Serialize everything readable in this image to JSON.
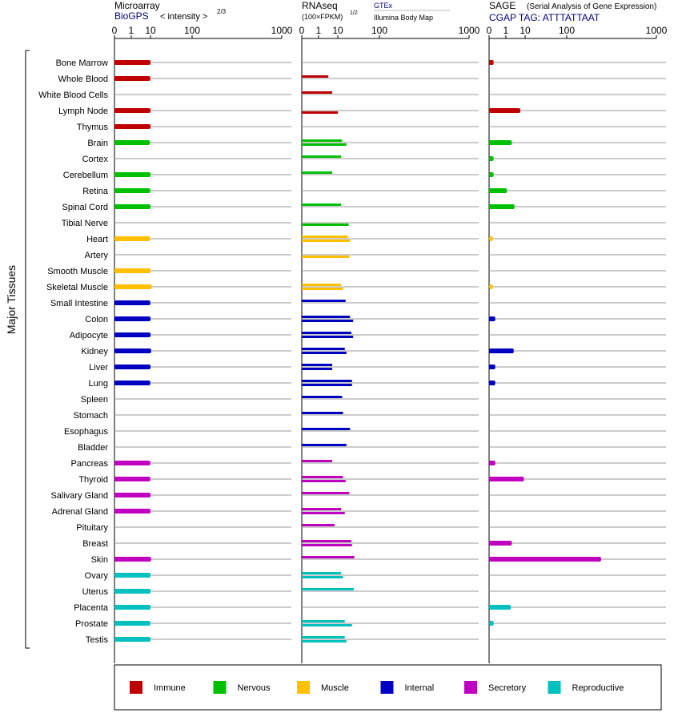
{
  "panels": {
    "microarray": {
      "title": "Microarray",
      "source": "BioGPS",
      "unit_prefix": "< intensity >",
      "unit_exp": "2/3"
    },
    "rnaseq": {
      "title": "RNAseq",
      "unit": "(100×FPKM)",
      "unit_exp": "1/2",
      "source_gtex": "GTEx",
      "source_illumina": "Illumina Body Map"
    },
    "sage": {
      "title": "SAGE",
      "subtitle": "(Serial Analysis of Gene Expression)",
      "source": "CGAP TAG: ATTTATTAAT"
    }
  },
  "y_axis_label": "Major Tissues",
  "legend": [
    {
      "label": "Immune",
      "color": "#c00000"
    },
    {
      "label": "Nervous",
      "color": "#00c000"
    },
    {
      "label": "Muscle",
      "color": "#ffc000"
    },
    {
      "label": "Internal",
      "color": "#0000c0"
    },
    {
      "label": "Secretory",
      "color": "#c000c0"
    },
    {
      "label": "Reproductive",
      "color": "#00c0c0"
    }
  ],
  "chart_data": {
    "type": "bar",
    "orientation": "horizontal",
    "x_scale": "power (2/3-root style), ticks at 0, 1, 10, 100, 1000",
    "x_ticks": [
      "0",
      "1",
      "10",
      "100",
      "1000"
    ],
    "xlim": [
      0,
      1000
    ],
    "categories": [
      "Bone Marrow",
      "Whole Blood",
      "White Blood Cells",
      "Lymph Node",
      "Thymus",
      "Brain",
      "Cortex",
      "Cerebellum",
      "Retina",
      "Spinal Cord",
      "Tibial Nerve",
      "Heart",
      "Artery",
      "Smooth Muscle",
      "Skeletal Muscle",
      "Small Intestine",
      "Colon",
      "Adipocyte",
      "Kidney",
      "Liver",
      "Lung",
      "Spleen",
      "Stomach",
      "Esophagus",
      "Bladder",
      "Pancreas",
      "Thyroid",
      "Salivary Gland",
      "Adrenal Gland",
      "Pituitary",
      "Breast",
      "Skin",
      "Ovary",
      "Uterus",
      "Placenta",
      "Prostate",
      "Testis"
    ],
    "groups": [
      "Immune",
      "Immune",
      "Immune",
      "Immune",
      "Immune",
      "Nervous",
      "Nervous",
      "Nervous",
      "Nervous",
      "Nervous",
      "Nervous",
      "Muscle",
      "Muscle",
      "Muscle",
      "Muscle",
      "Internal",
      "Internal",
      "Internal",
      "Internal",
      "Internal",
      "Internal",
      "Internal",
      "Internal",
      "Internal",
      "Internal",
      "Secretory",
      "Secretory",
      "Secretory",
      "Secretory",
      "Secretory",
      "Secretory",
      "Secretory",
      "Reproductive",
      "Reproductive",
      "Reproductive",
      "Reproductive",
      "Reproductive"
    ],
    "series": [
      {
        "name": "Microarray",
        "values": [
          10,
          9.8,
          null,
          10,
          10,
          9.5,
          null,
          10,
          9.8,
          10,
          null,
          9.5,
          null,
          10,
          11,
          9.8,
          10,
          10,
          10.5,
          10,
          9.8,
          null,
          null,
          null,
          null,
          9.8,
          9.8,
          10,
          10,
          null,
          null,
          10.5,
          10,
          10,
          10,
          9.8,
          10
        ]
      },
      {
        "name": "RNAseq GTEx",
        "values": [
          null,
          null,
          null,
          null,
          null,
          15,
          null,
          null,
          null,
          null,
          null,
          22,
          null,
          null,
          null,
          null,
          22,
          28,
          16,
          5.5,
          28,
          null,
          null,
          null,
          null,
          null,
          null,
          null,
          null,
          null,
          null,
          null,
          null,
          null,
          null,
          null,
          null
        ]
      },
      {
        "name": "RNAseq Illumina Body Map",
        "values": [
          4,
          null,
          null,
          null,
          null,
          null,
          null,
          null,
          null,
          null,
          null,
          null,
          null,
          null,
          null,
          null,
          null,
          null,
          null,
          null,
          null,
          null,
          null,
          null,
          null,
          null,
          null,
          null,
          null,
          null,
          null,
          null,
          null,
          null,
          null,
          null,
          null
        ]
      },
      {
        "name": "RNAseq GTEx (row 1)",
        "values": [
          null,
          4,
          6,
          null,
          null,
          14,
          13,
          null,
          null,
          13,
          null,
          21,
          null,
          null,
          12,
          null,
          null,
          null,
          null,
          null,
          null,
          null,
          null,
          null,
          null,
          null,
          null,
          null,
          null,
          null,
          null,
          null,
          null,
          null,
          null,
          null,
          null
        ]
      },
      {
        "name": "RNAseq GTEx (row 2)",
        "values": [
          null,
          null,
          null,
          null,
          null,
          null,
          null,
          null,
          null,
          null,
          null,
          null,
          null,
          null,
          null,
          null,
          null,
          null,
          null,
          null,
          null,
          null,
          null,
          null,
          null,
          null,
          null,
          null,
          null,
          null,
          null,
          null,
          null,
          null,
          null,
          null,
          null
        ]
      },
      {
        "name": "RNAseq values (top, bottom)",
        "pairs": [
          [
            null,
            null
          ],
          [
            4,
            null
          ],
          [
            6,
            null
          ],
          [
            null,
            10
          ],
          [
            null,
            null
          ],
          [
            14,
            19
          ],
          [
            13,
            null
          ],
          [
            6,
            null
          ],
          [
            null,
            null
          ],
          [
            13,
            null
          ],
          [
            null,
            22
          ],
          [
            21,
            24
          ],
          [
            null,
            23
          ],
          [
            null,
            null
          ],
          [
            13,
            15
          ],
          [
            18,
            null
          ],
          [
            24,
            29
          ],
          [
            26,
            29
          ],
          [
            17,
            19
          ],
          [
            6,
            6
          ],
          [
            27,
            27
          ],
          [
            14,
            null
          ],
          [
            15,
            null
          ],
          [
            24,
            null
          ],
          [
            19,
            null
          ],
          [
            6,
            null
          ],
          [
            15,
            18
          ],
          [
            23,
            null
          ],
          [
            13,
            17
          ],
          [
            7.5,
            null
          ],
          [
            26,
            27
          ],
          [
            31,
            null
          ],
          [
            13,
            15
          ],
          [
            30,
            null
          ],
          [
            null,
            null
          ],
          [
            17,
            27
          ],
          [
            17,
            19
          ]
        ]
      },
      {
        "name": "SAGE",
        "values": [
          0.02,
          null,
          null,
          6.5,
          null,
          2.5,
          0.02,
          0.02,
          1.2,
          3.5,
          null,
          0.01,
          null,
          null,
          0.01,
          null,
          0.05,
          null,
          3.2,
          0.05,
          0.05,
          null,
          null,
          null,
          null,
          0.05,
          9,
          null,
          null,
          null,
          2.5,
          300,
          null,
          null,
          2.2,
          0.02,
          null
        ]
      }
    ]
  }
}
